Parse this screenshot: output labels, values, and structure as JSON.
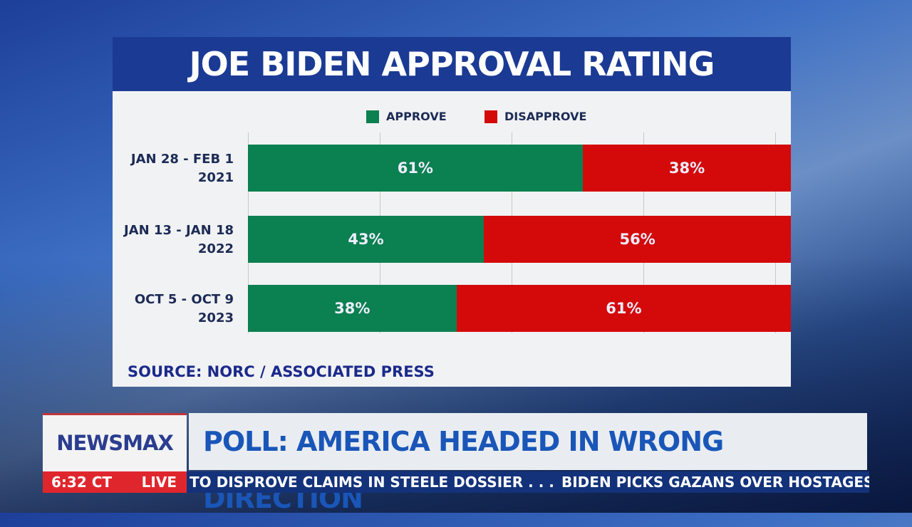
{
  "chart_data": {
    "type": "bar",
    "orientation": "horizontal-stacked",
    "title": "JOE BIDEN APPROVAL RATING",
    "categories": [
      [
        "JAN 28 - FEB 1",
        "2021"
      ],
      [
        "JAN 13 - JAN 18",
        "2022"
      ],
      [
        "OCT 5 - OCT 9",
        "2023"
      ]
    ],
    "series": [
      {
        "name": "APPROVE",
        "color": "#0b8050",
        "values": [
          61,
          43,
          38
        ],
        "labels": [
          "61%",
          "43%",
          "38%"
        ]
      },
      {
        "name": "DISAPPROVE",
        "color": "#d40a0a",
        "values": [
          38,
          56,
          61
        ],
        "labels": [
          "38%",
          "56%",
          "61%"
        ]
      }
    ],
    "xlim": [
      0,
      100
    ],
    "legend": "top-center",
    "grid": true,
    "source": "SOURCE: NORC / ASSOCIATED PRESS"
  },
  "lower_third": {
    "logo": "NEWSMAX",
    "time": "6:32 CT",
    "live": "LIVE",
    "headline": "POLL: AMERICA HEADED IN WRONG DIRECTION",
    "ticker": [
      "TO DISPROVE CLAIMS IN STEELE DOSSIER . . .",
      "BIDEN PICKS GAZANS OVER HOSTAGES"
    ]
  }
}
